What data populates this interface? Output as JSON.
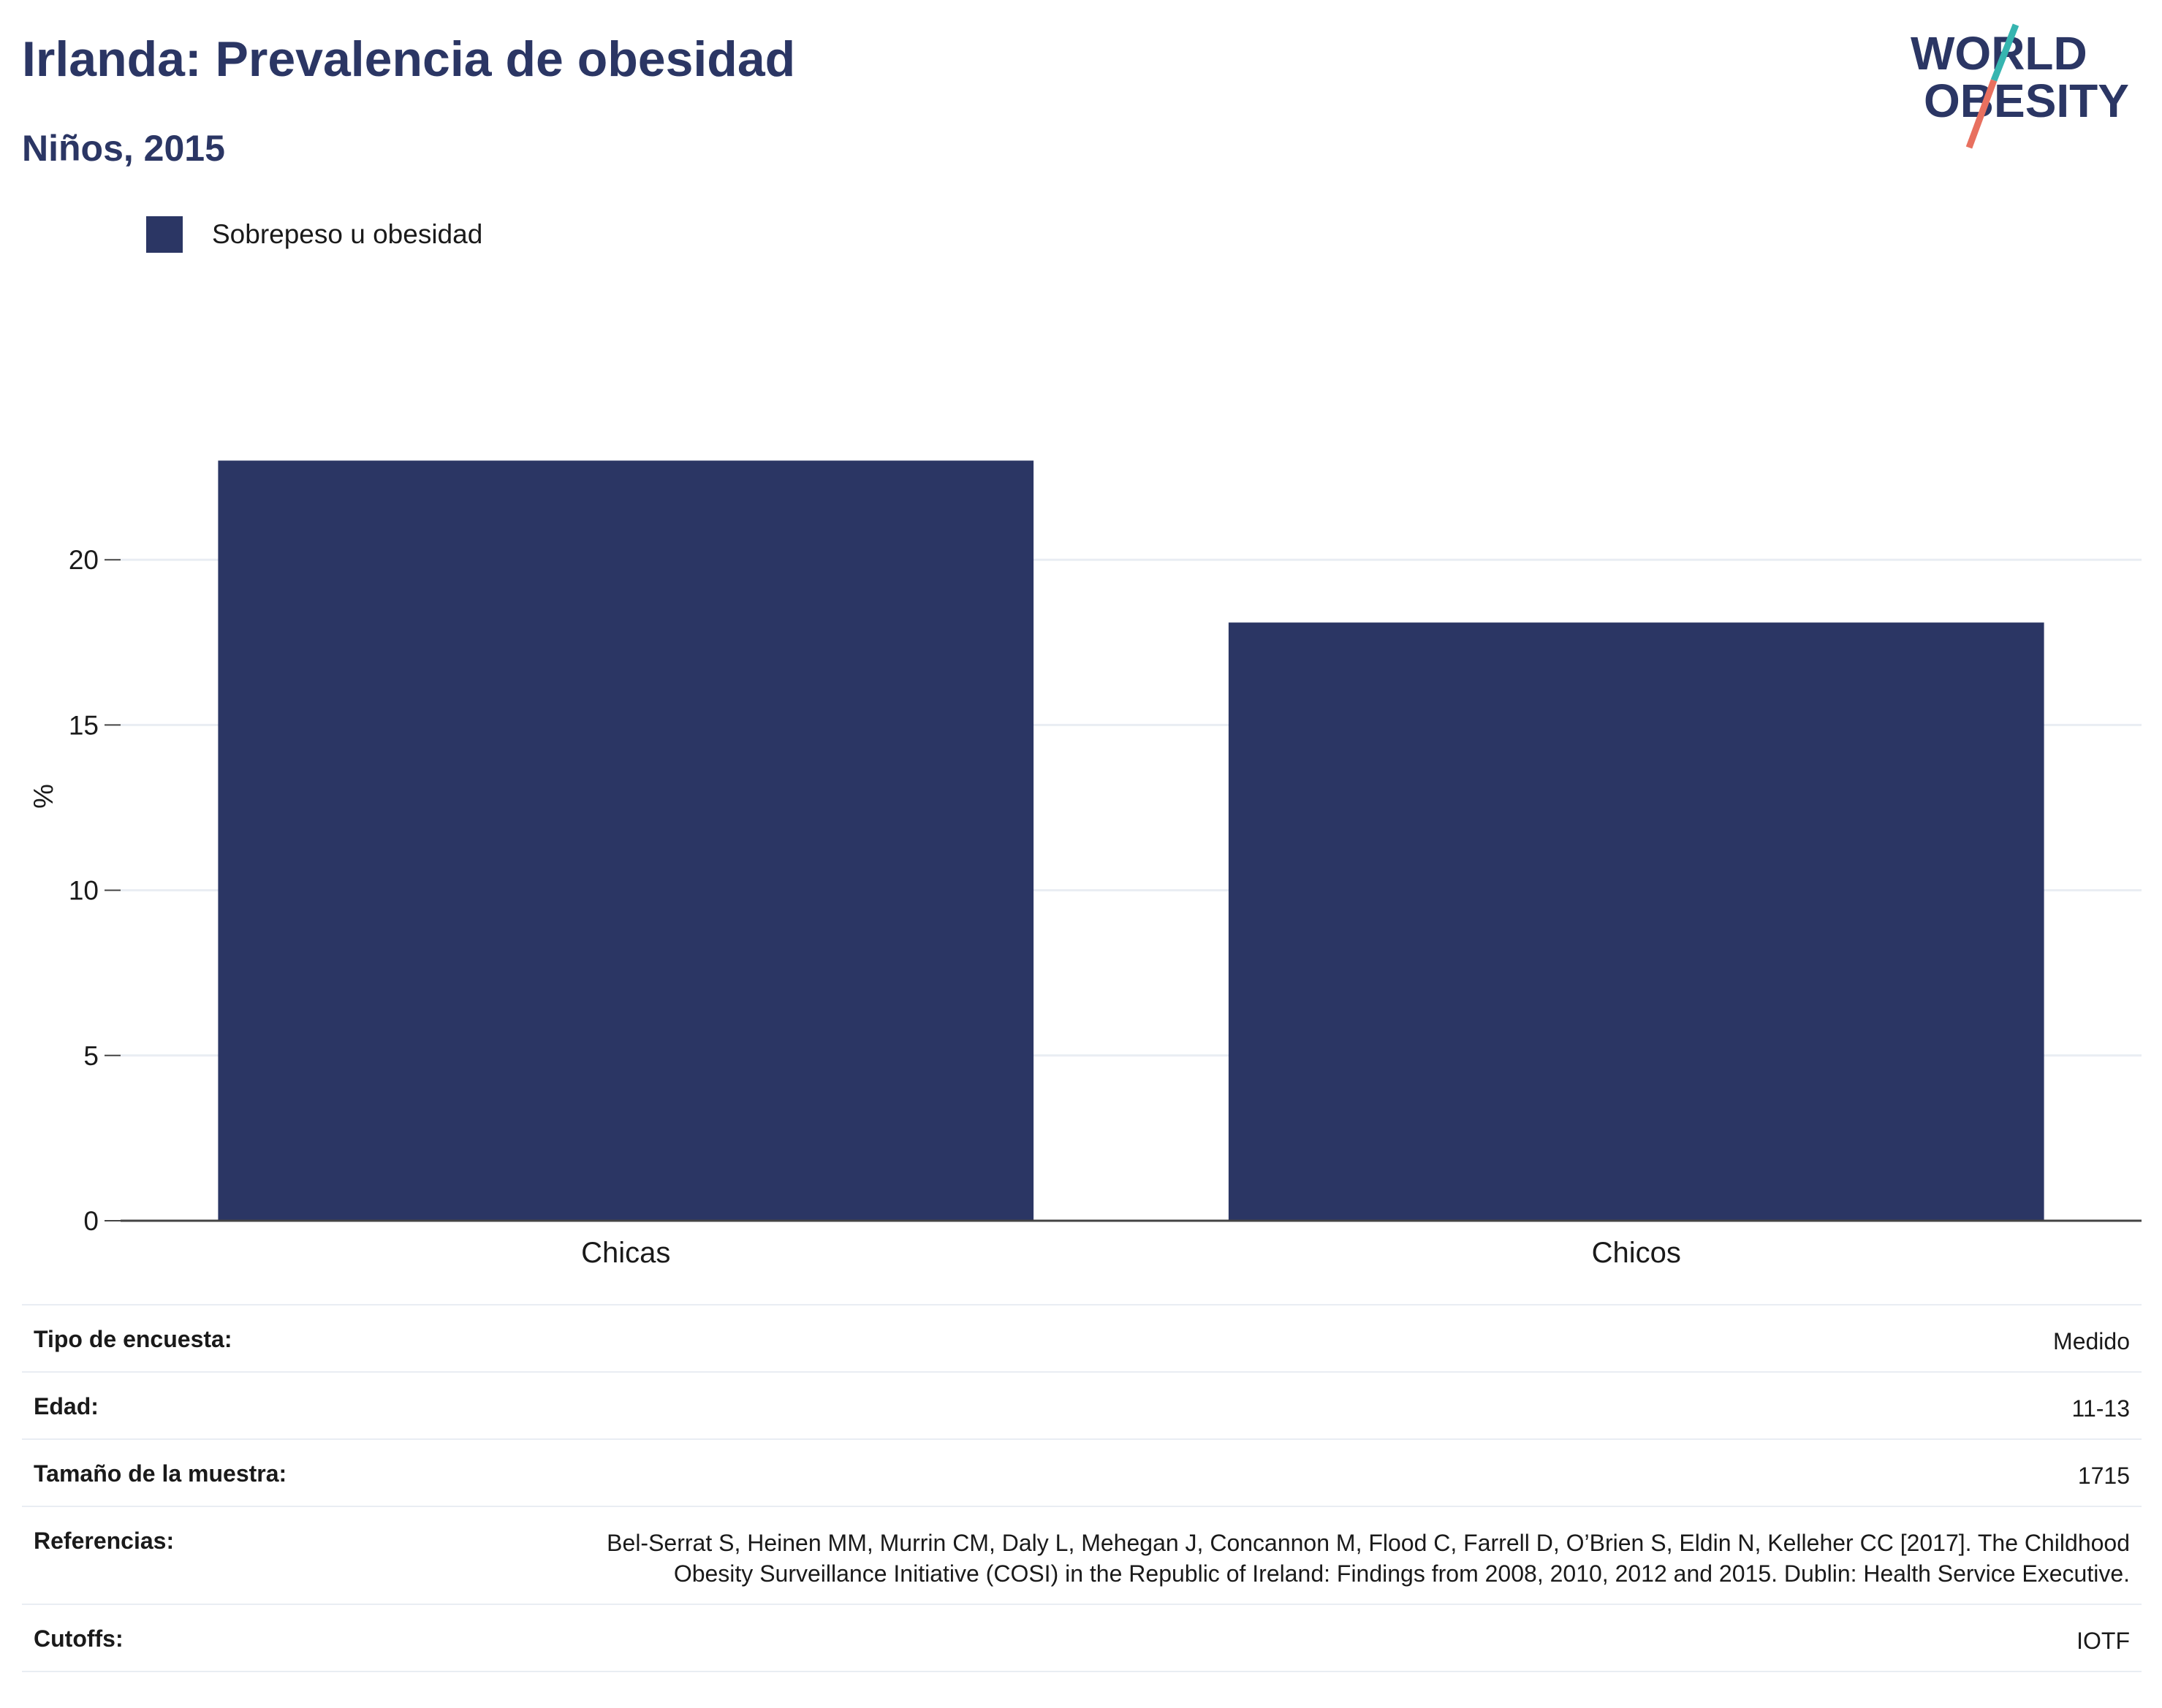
{
  "header": {
    "title": "Irlanda: Prevalencia de obesidad",
    "subtitle": "Niños, 2015"
  },
  "logo": {
    "line1": "WORLD",
    "line2": "OBESITY"
  },
  "colors": {
    "bar": "#2b3664",
    "title": "#2b3664",
    "logo_teal": "#36b5b0",
    "logo_coral": "#e8705f",
    "grid": "#e9edf3",
    "axis": "#444444"
  },
  "chart_data": {
    "type": "bar",
    "categories": [
      "Chicas",
      "Chicos"
    ],
    "series": [
      {
        "name": "Sobrepeso u obesidad",
        "values": [
          23.0,
          18.1
        ]
      }
    ],
    "ylabel": "%",
    "xlabel": "",
    "ylim": [
      0,
      25
    ],
    "yticks": [
      0,
      5,
      10,
      15,
      20
    ],
    "grid": true,
    "legend": "top-left"
  },
  "info": [
    {
      "label": "Tipo de encuesta:",
      "value": "Medido"
    },
    {
      "label": "Edad:",
      "value": "11-13"
    },
    {
      "label": "Tamaño de la muestra:",
      "value": "1715"
    },
    {
      "label": "Referencias:",
      "value": "Bel-Serrat S, Heinen MM, Murrin CM, Daly L, Mehegan J, Concannon M, Flood C, Farrell D, O’Brien S, Eldin N, Kelleher CC [2017]. The Childhood Obesity Surveillance Initiative (COSI) in the Republic of Ireland: Findings from 2008, 2010, 2012 and 2015. Dublin: Health Service Executive."
    },
    {
      "label": "Cutoffs:",
      "value": "IOTF"
    }
  ]
}
